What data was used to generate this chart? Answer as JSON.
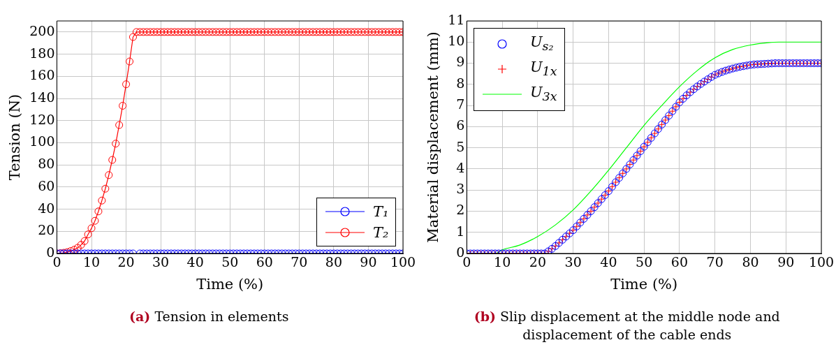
{
  "chart_data": [
    {
      "type": "line",
      "xlabel": "Time (%)",
      "ylabel": "Tension (N)",
      "annotations": [
        "(a) Tension in elements"
      ],
      "xlim": [
        0,
        100
      ],
      "xticks": [
        0,
        10,
        20,
        30,
        40,
        50,
        60,
        70,
        80,
        90,
        100
      ],
      "ylim": [
        0,
        210
      ],
      "yticks": [
        0,
        20,
        40,
        60,
        80,
        100,
        120,
        140,
        160,
        180,
        200
      ],
      "grid": true,
      "legend": "bottom right",
      "marker": "circle",
      "x": [
        0,
        1,
        2,
        3,
        4,
        5,
        6,
        7,
        8,
        9,
        10,
        11,
        12,
        13,
        14,
        15,
        16,
        17,
        18,
        19,
        20,
        21,
        22,
        23,
        24,
        25,
        26,
        27,
        28,
        29,
        30,
        31,
        32,
        33,
        34,
        35,
        36,
        37,
        38,
        39,
        40,
        41,
        42,
        43,
        44,
        45,
        46,
        47,
        48,
        49,
        50,
        51,
        52,
        53,
        54,
        55,
        56,
        57,
        58,
        59,
        60,
        61,
        62,
        63,
        64,
        65,
        66,
        67,
        68,
        69,
        70,
        71,
        72,
        73,
        74,
        75,
        76,
        77,
        78,
        79,
        80,
        81,
        82,
        83,
        84,
        85,
        86,
        87,
        88,
        89,
        90,
        91,
        92,
        93,
        94,
        95,
        96,
        97,
        98,
        99,
        100
      ],
      "series": [
        {
          "name": "T₁",
          "color": "#0000ff",
          "values": [
            0,
            0,
            0,
            0,
            0,
            0,
            0,
            0,
            0,
            0,
            0,
            0,
            0,
            0,
            0,
            0,
            0,
            0,
            0,
            0,
            0,
            0,
            0,
            null,
            0,
            0,
            0,
            0,
            0,
            0,
            0,
            0,
            0,
            0,
            0,
            0,
            0,
            0,
            0,
            0,
            0,
            0,
            0,
            0,
            0,
            0,
            0,
            0,
            0,
            0,
            0,
            0,
            0,
            0,
            0,
            0,
            0,
            0,
            0,
            0,
            0,
            0,
            0,
            0,
            0,
            0,
            0,
            0,
            0,
            0,
            0,
            0,
            0,
            0,
            0,
            0,
            0,
            0,
            0,
            0,
            0,
            0,
            0,
            0,
            0,
            0,
            0,
            0,
            0,
            0,
            0,
            0,
            0,
            0,
            0,
            0,
            0,
            0,
            0,
            0,
            0
          ]
        },
        {
          "name": "T₂",
          "color": "#ff0000",
          "values": [
            0,
            0.2,
            0.6,
            1.2,
            2.2,
            3.4,
            5.1,
            7.8,
            11.2,
            17.2,
            22.8,
            29.5,
            38,
            47.8,
            58.5,
            70.8,
            84.5,
            99.2,
            116,
            133.4,
            152.8,
            173.4,
            195.5,
            200,
            200,
            200,
            200,
            200,
            200,
            200,
            200,
            200,
            200,
            200,
            200,
            200,
            200,
            200,
            200,
            200,
            200,
            200,
            200,
            200,
            200,
            200,
            200,
            200,
            200,
            200,
            200,
            200,
            200,
            200,
            200,
            200,
            200,
            200,
            200,
            200,
            200,
            200,
            200,
            200,
            200,
            200,
            200,
            200,
            200,
            200,
            200,
            200,
            200,
            200,
            200,
            200,
            200,
            200,
            200,
            200,
            200,
            200,
            200,
            200,
            200,
            200,
            200,
            200,
            200,
            200,
            200,
            200,
            200,
            200,
            200,
            200,
            200,
            200,
            200,
            200,
            200
          ]
        }
      ]
    },
    {
      "type": "scatter",
      "xlabel": "Time (%)",
      "ylabel": "Material displacement (mm)",
      "annotations": [
        "(b) Slip displacement at the middle node and displacement of the cable ends"
      ],
      "xlim": [
        0,
        100
      ],
      "xticks": [
        0,
        10,
        20,
        30,
        40,
        50,
        60,
        70,
        80,
        90,
        100
      ],
      "ylim": [
        0,
        11
      ],
      "yticks": [
        0,
        1,
        2,
        3,
        4,
        5,
        6,
        7,
        8,
        9,
        10,
        11
      ],
      "grid": true,
      "legend": "top left",
      "x": [
        0,
        1,
        2,
        3,
        4,
        5,
        6,
        7,
        8,
        9,
        10,
        11,
        12,
        13,
        14,
        15,
        16,
        17,
        18,
        19,
        20,
        21,
        22,
        23,
        24,
        25,
        26,
        27,
        28,
        29,
        30,
        31,
        32,
        33,
        34,
        35,
        36,
        37,
        38,
        39,
        40,
        41,
        42,
        43,
        44,
        45,
        46,
        47,
        48,
        49,
        50,
        51,
        52,
        53,
        54,
        55,
        56,
        57,
        58,
        59,
        60,
        61,
        62,
        63,
        64,
        65,
        66,
        67,
        68,
        69,
        70,
        71,
        72,
        73,
        74,
        75,
        76,
        77,
        78,
        79,
        80,
        81,
        82,
        83,
        84,
        85,
        86,
        87,
        88,
        89,
        90,
        91,
        92,
        93,
        94,
        95,
        96,
        97,
        98,
        99,
        100
      ],
      "series": [
        {
          "name": "U$_{s₂}$",
          "color": "#0000ff",
          "marker": "circle",
          "values": [
            0,
            0,
            0,
            0,
            0,
            0,
            0,
            0,
            0,
            0,
            0,
            0,
            0,
            0,
            0,
            0,
            0,
            0,
            0,
            0,
            0,
            0,
            0,
            0.1,
            0.22,
            0.35,
            0.5,
            0.65,
            0.8,
            0.95,
            1.1,
            1.28,
            1.46,
            1.64,
            1.82,
            2.0,
            2.19,
            2.38,
            2.57,
            2.76,
            2.95,
            3.16,
            3.37,
            3.58,
            3.79,
            4.0,
            4.21,
            4.42,
            4.63,
            4.84,
            5.05,
            5.26,
            5.47,
            5.68,
            5.89,
            6.1,
            6.31,
            6.52,
            6.73,
            6.94,
            7.15,
            7.32,
            7.48,
            7.63,
            7.77,
            7.9,
            8.02,
            8.13,
            8.24,
            8.35,
            8.45,
            8.52,
            8.59,
            8.65,
            8.7,
            8.75,
            8.79,
            8.83,
            8.86,
            8.89,
            8.92,
            8.94,
            8.95,
            8.96,
            8.97,
            8.98,
            8.99,
            9,
            9,
            9,
            9,
            9,
            9,
            9,
            9,
            9,
            9,
            9,
            9,
            9,
            9
          ]
        },
        {
          "name": "U$_{1x}$",
          "color": "#ff0000",
          "marker": "cross",
          "values": [
            0,
            0,
            0,
            0,
            0,
            0,
            0,
            0,
            0,
            0,
            0,
            0,
            0,
            0,
            0,
            0,
            0,
            0,
            0,
            0,
            0,
            0,
            0,
            0.1,
            0.22,
            0.35,
            0.5,
            0.65,
            0.8,
            0.95,
            1.1,
            1.28,
            1.46,
            1.64,
            1.82,
            2.0,
            2.19,
            2.38,
            2.57,
            2.76,
            2.95,
            3.16,
            3.37,
            3.58,
            3.79,
            4.0,
            4.21,
            4.42,
            4.63,
            4.84,
            5.05,
            5.26,
            5.47,
            5.68,
            5.89,
            6.1,
            6.31,
            6.52,
            6.73,
            6.94,
            7.15,
            7.32,
            7.48,
            7.63,
            7.77,
            7.9,
            8.02,
            8.13,
            8.24,
            8.35,
            8.45,
            8.52,
            8.59,
            8.65,
            8.7,
            8.75,
            8.79,
            8.83,
            8.86,
            8.89,
            8.92,
            8.94,
            8.95,
            8.96,
            8.97,
            8.98,
            8.99,
            9,
            9,
            9,
            9,
            9,
            9,
            9,
            9,
            9,
            9,
            9,
            9,
            9,
            9
          ]
        },
        {
          "name": "U$_{3x}$",
          "color": "#00ff00",
          "type": "line",
          "marker": "none",
          "x": [
            0,
            5,
            8,
            10,
            15,
            20,
            25,
            30,
            35,
            40,
            45,
            50,
            55,
            60,
            65,
            70,
            75,
            80,
            85,
            88,
            90,
            95,
            100
          ],
          "values": [
            0,
            0,
            0,
            0.17,
            0.4,
            0.8,
            1.35,
            2.06,
            2.95,
            3.94,
            5.0,
            6.06,
            7.0,
            7.89,
            8.65,
            9.26,
            9.65,
            9.86,
            9.97,
            10,
            10,
            10,
            10
          ]
        }
      ]
    }
  ]
}
